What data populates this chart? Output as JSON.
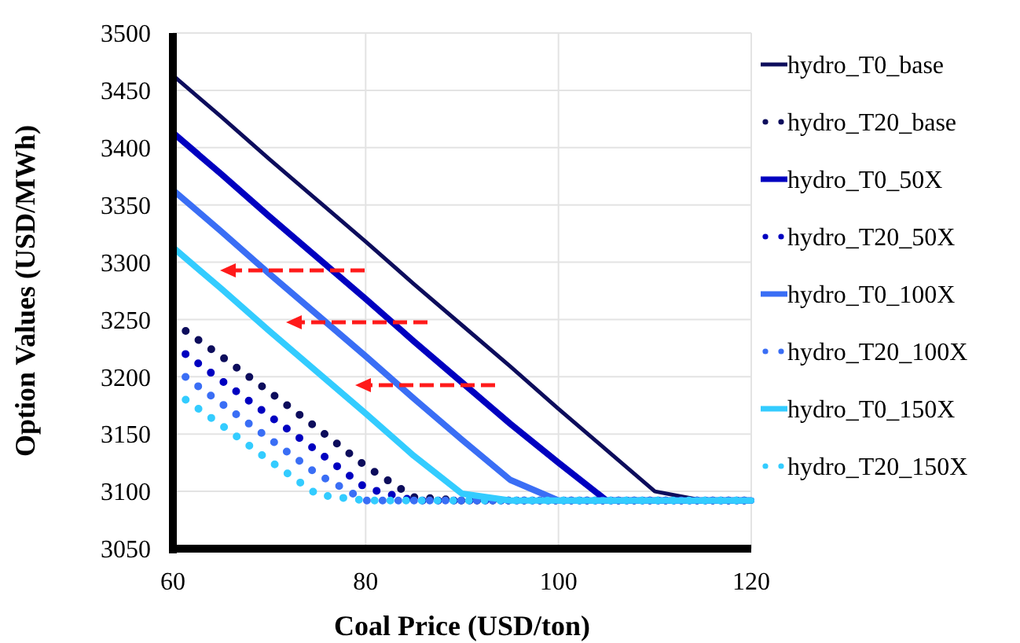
{
  "chart_data": {
    "type": "line",
    "xlabel": "Coal Price (USD/ton)",
    "ylabel": "Option Values (USD/MWh)",
    "x": [
      60,
      65,
      70,
      75,
      80,
      85,
      90,
      95,
      100,
      105,
      110,
      115,
      120
    ],
    "xlim": [
      60,
      120
    ],
    "xticks": [
      60,
      80,
      100,
      120
    ],
    "ylim": [
      3050,
      3500
    ],
    "yticks": [
      3050,
      3100,
      3150,
      3200,
      3250,
      3300,
      3350,
      3400,
      3450,
      3500
    ],
    "grid": true,
    "legend": "right",
    "marker": "none",
    "series": [
      {
        "name": "hydro_T0_base",
        "color": "#0d0d5c",
        "line_style": "solid",
        "values": [
          3463,
          3427,
          3390,
          3354,
          3318,
          3281,
          3245,
          3209,
          3172,
          3136,
          3100,
          3092,
          3092
        ]
      },
      {
        "name": "hydro_T20_base",
        "color": "#0d0d5c",
        "line_style": "dotted",
        "values": [
          3248,
          3218,
          3187,
          3155,
          3122,
          3095,
          3092,
          3092,
          3092,
          3092,
          3092,
          3092,
          3092
        ]
      },
      {
        "name": "hydro_T0_50X",
        "color": "#0000c0",
        "line_style": "solid",
        "values": [
          3413,
          3377,
          3340,
          3304,
          3268,
          3231,
          3195,
          3159,
          3125,
          3092,
          3092,
          3092,
          3092
        ]
      },
      {
        "name": "hydro_T20_50X",
        "color": "#0000c0",
        "line_style": "dotted",
        "values": [
          3228,
          3197,
          3166,
          3135,
          3103,
          3092,
          3092,
          3092,
          3092,
          3092,
          3092,
          3092,
          3092
        ]
      },
      {
        "name": "hydro_T0_100X",
        "color": "#3a6ef5",
        "line_style": "solid",
        "values": [
          3363,
          3327,
          3290,
          3254,
          3218,
          3181,
          3145,
          3110,
          3092,
          3092,
          3092,
          3092,
          3092
        ]
      },
      {
        "name": "hydro_T20_100X",
        "color": "#3a6ef5",
        "line_style": "dotted",
        "values": [
          3208,
          3177,
          3146,
          3115,
          3092,
          3092,
          3092,
          3092,
          3092,
          3092,
          3092,
          3092,
          3092
        ]
      },
      {
        "name": "hydro_T0_150X",
        "color": "#33ccff",
        "line_style": "solid",
        "values": [
          3313,
          3277,
          3240,
          3204,
          3168,
          3131,
          3098,
          3092,
          3092,
          3092,
          3092,
          3092,
          3092
        ]
      },
      {
        "name": "hydro_T20_150X",
        "color": "#33ccff",
        "line_style": "dotted",
        "values": [
          3188,
          3158,
          3127,
          3097,
          3092,
          3092,
          3092,
          3092,
          3092,
          3092,
          3092,
          3092,
          3092
        ]
      }
    ]
  }
}
